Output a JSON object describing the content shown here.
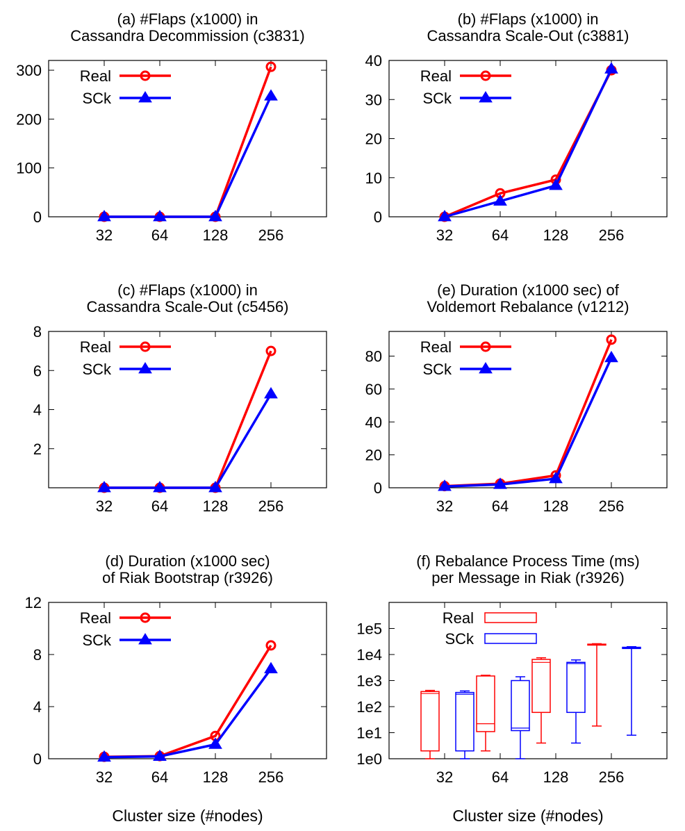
{
  "colors": {
    "real": "#ff0000",
    "sck": "#0000ff"
  },
  "chart_data": [
    {
      "id": "a",
      "type": "line",
      "title": [
        "(a) #Flaps (x1000) in",
        "Cassandra Decommission (c3831)"
      ],
      "xlabel": "",
      "categories": [
        "32",
        "64",
        "128",
        "256"
      ],
      "yticks": [
        0,
        100,
        200,
        300
      ],
      "ylim": [
        0,
        320
      ],
      "series": [
        {
          "name": "Real",
          "marker": "circle",
          "values": [
            0,
            0,
            0,
            307
          ]
        },
        {
          "name": "SCk",
          "marker": "triangle",
          "values": [
            0,
            0,
            0,
            247
          ]
        }
      ]
    },
    {
      "id": "b",
      "type": "line",
      "title": [
        "(b) #Flaps (x1000) in",
        "Cassandra Scale-Out (c3881)"
      ],
      "xlabel": "",
      "categories": [
        "32",
        "64",
        "128",
        "256"
      ],
      "yticks": [
        0,
        10,
        20,
        30,
        40
      ],
      "ylim": [
        0,
        40
      ],
      "series": [
        {
          "name": "Real",
          "marker": "circle",
          "values": [
            0,
            6,
            9.5,
            37.5
          ]
        },
        {
          "name": "SCk",
          "marker": "triangle",
          "values": [
            0,
            4,
            8,
            37.8
          ]
        }
      ]
    },
    {
      "id": "c",
      "type": "line",
      "title": [
        "(c) #Flaps (x1000) in",
        "Cassandra Scale-Out (c5456)"
      ],
      "xlabel": "",
      "categories": [
        "32",
        "64",
        "128",
        "256"
      ],
      "yticks": [
        2,
        4,
        6,
        8
      ],
      "ylim": [
        0,
        8
      ],
      "series": [
        {
          "name": "Real",
          "marker": "circle",
          "values": [
            0,
            0,
            0,
            7.0
          ]
        },
        {
          "name": "SCk",
          "marker": "triangle",
          "values": [
            0,
            0,
            0,
            4.8
          ]
        }
      ]
    },
    {
      "id": "e",
      "type": "line",
      "title": [
        "(e) Duration (x1000 sec) of",
        "Voldemort Rebalance (v1212)"
      ],
      "xlabel": "",
      "categories": [
        "32",
        "64",
        "128",
        "256"
      ],
      "yticks": [
        0,
        20,
        40,
        60,
        80
      ],
      "ylim": [
        0,
        95
      ],
      "series": [
        {
          "name": "Real",
          "marker": "circle",
          "values": [
            1,
            2.5,
            7.5,
            90
          ]
        },
        {
          "name": "SCk",
          "marker": "triangle",
          "values": [
            0.8,
            2,
            5.5,
            79
          ]
        }
      ]
    },
    {
      "id": "d",
      "type": "line",
      "title": [
        "(d) Duration (x1000 sec)",
        "of Riak Bootstrap (r3926)"
      ],
      "xlabel": "Cluster size (#nodes)",
      "categories": [
        "32",
        "64",
        "128",
        "256"
      ],
      "yticks": [
        0,
        4,
        8,
        12
      ],
      "ylim": [
        0,
        12
      ],
      "series": [
        {
          "name": "Real",
          "marker": "circle",
          "values": [
            0.15,
            0.2,
            1.75,
            8.7
          ]
        },
        {
          "name": "SCk",
          "marker": "triangle",
          "values": [
            0.12,
            0.18,
            1.1,
            6.9
          ]
        }
      ]
    },
    {
      "id": "f",
      "type": "box",
      "title": [
        "(f) Rebalance Process Time (ms)",
        "per Message in Riak (r3926)"
      ],
      "xlabel": "Cluster size (#nodes)",
      "categories": [
        "32",
        "64",
        "128",
        "256"
      ],
      "yscale": "log",
      "yticks": [
        "1e0",
        "1e1",
        "1e2",
        "1e3",
        "1e4",
        "1e5"
      ],
      "ylim": [
        1,
        1000000
      ],
      "series": [
        {
          "name": "Real",
          "boxes": [
            {
              "min": 1,
              "q1": 2,
              "median": 320,
              "q3": 380,
              "max": 420
            },
            {
              "min": 2,
              "q1": 11,
              "median": 22,
              "q3": 1500,
              "max": 1600
            },
            {
              "min": 4,
              "q1": 60,
              "median": 5000,
              "q3": 6500,
              "max": 7500
            },
            {
              "min": 18,
              "q1": 23000,
              "median": 24000,
              "q3": 25000,
              "max": 26000
            }
          ]
        },
        {
          "name": "SCk",
          "boxes": [
            {
              "min": 1,
              "q1": 2,
              "median": 300,
              "q3": 350,
              "max": 400
            },
            {
              "min": 1,
              "q1": 12,
              "median": 15,
              "q3": 1000,
              "max": 1400
            },
            {
              "min": 4,
              "q1": 60,
              "median": 4500,
              "q3": 5000,
              "max": 6200
            },
            {
              "min": 8,
              "q1": 17000,
              "median": 18000,
              "q3": 19000,
              "max": 20000
            }
          ]
        }
      ]
    }
  ]
}
